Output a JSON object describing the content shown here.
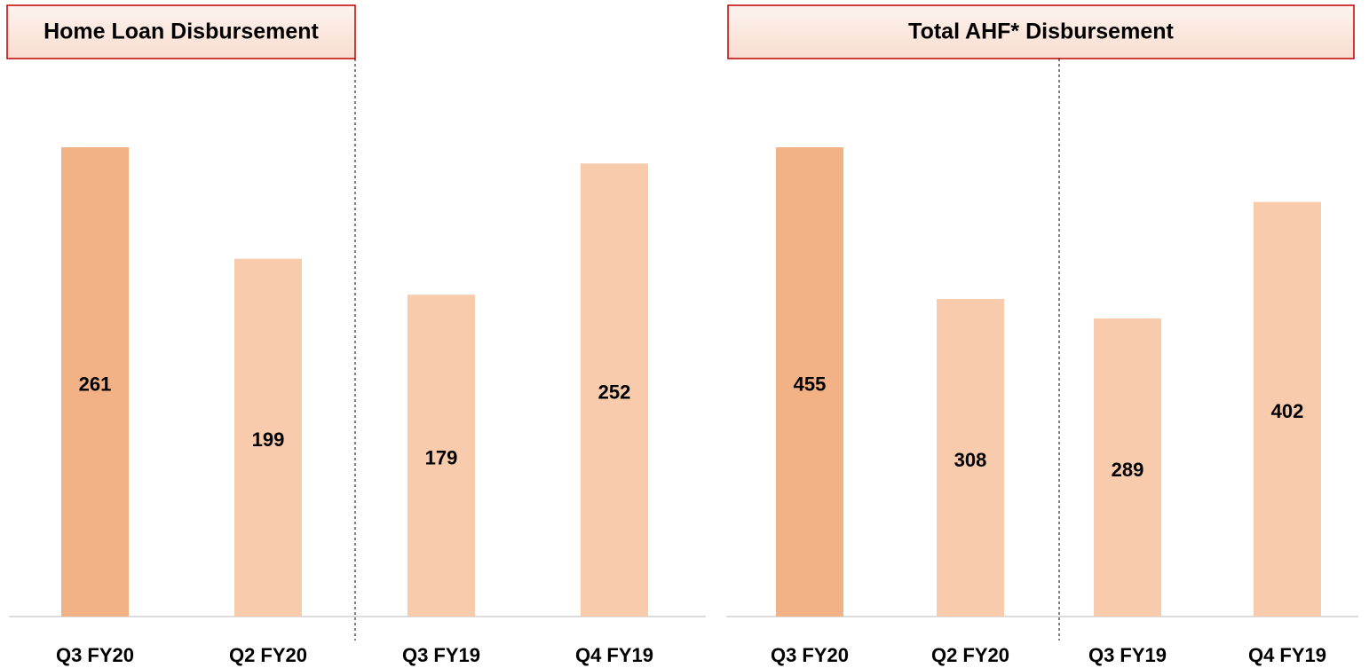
{
  "chart_data": [
    {
      "type": "bar",
      "title": "Home Loan Disbursement",
      "categories": [
        "Q3 FY20",
        "Q2 FY20",
        "Q3 FY19",
        "Q4 FY19"
      ],
      "values": [
        261,
        199,
        179,
        252
      ],
      "colors": [
        "#f3b286",
        "#f7cbac",
        "#f7cbac",
        "#f7cbac"
      ]
    },
    {
      "type": "bar",
      "title": "Total AHF* Disbursement",
      "categories": [
        "Q3 FY20",
        "Q2 FY20",
        "Q3 FY19",
        "Q4 FY19"
      ],
      "values": [
        455,
        308,
        289,
        402
      ],
      "colors": [
        "#f3b286",
        "#f7cbac",
        "#f7cbac",
        "#f7cbac"
      ]
    }
  ]
}
